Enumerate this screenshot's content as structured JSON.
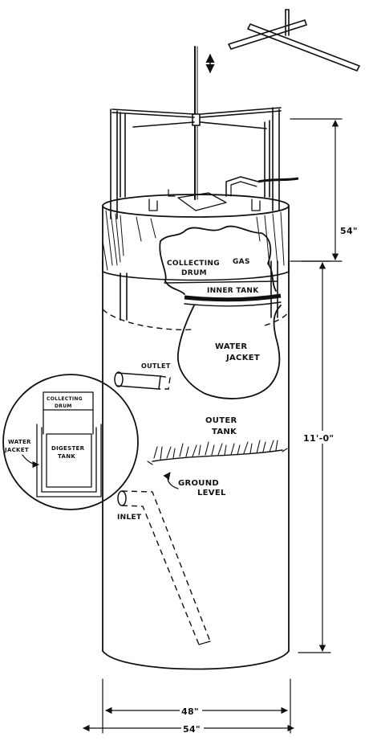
{
  "labels": {
    "collecting_drum": [
      "COLLECTING",
      "DRUM"
    ],
    "gas": "GAS",
    "inner_tank": "INNER TANK",
    "water_jacket": [
      "WATER",
      "JACKET"
    ],
    "outlet": "OUTLET",
    "outer_tank": [
      "OUTER",
      "TANK"
    ],
    "ground_level": [
      "GROUND",
      "LEVEL"
    ],
    "inlet": "INLET"
  },
  "inset": {
    "collecting_drum": [
      "COLLECTING",
      "DRUM"
    ],
    "digester_tank": [
      "DIGESTER",
      "TANK"
    ],
    "water_jacket": [
      "WATER",
      "JACKET"
    ]
  },
  "dimensions": {
    "drum_height": "54\"",
    "tank_height": "11'-0\"",
    "inner_diameter": "48\"",
    "outer_diameter": "54\""
  }
}
